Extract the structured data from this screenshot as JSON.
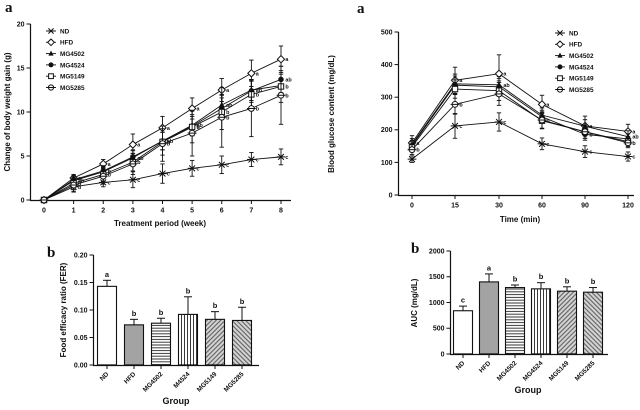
{
  "panels": {
    "weight_panel_label": "a",
    "fer_panel_label": "b",
    "glucose_panel_label": "a",
    "auc_panel_label": "b"
  },
  "colors": {
    "ink": "#111111",
    "solid_bar": "#a3a3a3",
    "hatch_bg": "#d4d4d4"
  },
  "chart_data": [
    {
      "id": "weight",
      "type": "line",
      "title": "",
      "xlabel": "Treatment period (week)",
      "ylabel": "Change of body weight gain (g)",
      "x": [
        0,
        1,
        2,
        3,
        4,
        5,
        6,
        7,
        8
      ],
      "xtick_labels": [
        "0",
        "1",
        "2",
        "3",
        "4",
        "5",
        "6",
        "7",
        "8"
      ],
      "xlim": [
        0,
        8
      ],
      "ylim": [
        0,
        20
      ],
      "yticks": [
        0,
        5,
        10,
        15,
        20
      ],
      "ytick_labels": [
        "0",
        "5",
        "10",
        "15",
        "20"
      ],
      "legend_position": "top-left-inside",
      "series": [
        {
          "name": "ND",
          "marker": "x-dash",
          "values": [
            0,
            1.5,
            2.0,
            2.3,
            3.0,
            3.6,
            4.0,
            4.6,
            4.9
          ],
          "errors": [
            0,
            0.6,
            0.5,
            0.9,
            1.1,
            0.9,
            1.0,
            0.8,
            0.9
          ],
          "letters": [
            "",
            "b",
            "c",
            "c",
            "c",
            "c",
            "c",
            "c",
            "c"
          ]
        },
        {
          "name": "HFD",
          "marker": "diamond-open",
          "values": [
            0,
            2.5,
            4.1,
            6.3,
            8.2,
            10.4,
            12.5,
            14.4,
            16.0
          ],
          "errors": [
            0,
            0.4,
            0.5,
            1.2,
            1.3,
            1.2,
            1.3,
            1.5,
            1.5
          ],
          "letters": [
            "",
            "a",
            "a",
            "a",
            "a",
            "a",
            "a",
            "a",
            "a"
          ]
        },
        {
          "name": "MG4502",
          "marker": "triangle-filled",
          "values": [
            0,
            2.2,
            3.2,
            4.8,
            6.7,
            8.5,
            10.8,
            12.5,
            13.0
          ],
          "errors": [
            0,
            0.5,
            0.6,
            0.8,
            1.0,
            1.2,
            1.1,
            1.2,
            1.3
          ],
          "letters": [
            "",
            "ab",
            "",
            "ab",
            "ab",
            "ab",
            "ab",
            "ab",
            ""
          ]
        },
        {
          "name": "MG4524",
          "marker": "circle-filled",
          "values": [
            0,
            2.3,
            3.3,
            4.9,
            6.7,
            8.4,
            10.4,
            12.4,
            13.7
          ],
          "errors": [
            0,
            0.5,
            0.6,
            0.8,
            1.0,
            1.1,
            1.2,
            1.3,
            1.5
          ],
          "letters": [
            "",
            "",
            "b",
            "",
            "",
            "b",
            "",
            "",
            "ab"
          ]
        },
        {
          "name": "MG5149",
          "marker": "square-open",
          "values": [
            0,
            1.9,
            2.9,
            4.3,
            6.6,
            8.3,
            10.0,
            12.0,
            12.9
          ],
          "errors": [
            0,
            0.7,
            0.8,
            1.0,
            1.5,
            1.8,
            2.0,
            1.5,
            1.8
          ],
          "letters": [
            "",
            "b",
            "b",
            "b",
            "b",
            "b",
            "b",
            "b",
            "b"
          ]
        },
        {
          "name": "MG5285",
          "marker": "circle-crossed",
          "values": [
            0,
            1.7,
            2.7,
            4.1,
            6.4,
            7.6,
            9.4,
            10.4,
            11.9
          ],
          "errors": [
            0,
            0.7,
            0.9,
            1.2,
            2.0,
            2.6,
            3.4,
            3.2,
            3.3
          ],
          "letters": [
            "",
            "",
            "",
            "",
            "b",
            "",
            "b",
            "b",
            "b"
          ]
        }
      ]
    },
    {
      "id": "glucose",
      "type": "line",
      "title": "",
      "xlabel": "Time (min)",
      "ylabel": "Blood glucose content (mg/dL)",
      "x": [
        0,
        15,
        30,
        60,
        90,
        120
      ],
      "x_equal_spacing": true,
      "xtick_labels": [
        "0",
        "15",
        "30",
        "60",
        "90",
        "120"
      ],
      "ylim": [
        0,
        500
      ],
      "yticks": [
        0,
        100,
        200,
        300,
        400,
        500
      ],
      "ytick_labels": [
        "0",
        "100",
        "200",
        "300",
        "400",
        "500"
      ],
      "legend_position": "top-right-inside",
      "series": [
        {
          "name": "ND",
          "marker": "x-dash",
          "values": [
            110,
            212,
            224,
            157,
            133,
            118
          ],
          "errors": [
            10,
            38,
            28,
            18,
            18,
            14
          ],
          "letters": [
            "",
            "c",
            "c",
            "c",
            "c",
            "c"
          ]
        },
        {
          "name": "HFD",
          "marker": "diamond-open",
          "values": [
            160,
            352,
            372,
            278,
            212,
            195
          ],
          "errors": [
            22,
            40,
            58,
            28,
            30,
            22
          ],
          "letters": [
            "a",
            "a",
            "a",
            "a",
            "a",
            "a"
          ]
        },
        {
          "name": "MG4502",
          "marker": "triangle-filled",
          "values": [
            155,
            341,
            338,
            245,
            211,
            179
          ],
          "errors": [
            18,
            30,
            25,
            22,
            20,
            18
          ],
          "letters": [
            "",
            "",
            "ab",
            "",
            "",
            "ab"
          ]
        },
        {
          "name": "MG4524",
          "marker": "circle-filled",
          "values": [
            152,
            337,
            332,
            240,
            186,
            172
          ],
          "errors": [
            15,
            28,
            25,
            20,
            18,
            15
          ],
          "letters": [
            "",
            "",
            "",
            "",
            "b",
            ""
          ]
        },
        {
          "name": "MG5149",
          "marker": "square-open",
          "values": [
            148,
            325,
            320,
            228,
            194,
            164
          ],
          "errors": [
            15,
            28,
            30,
            25,
            20,
            15
          ],
          "letters": [
            "",
            "",
            "",
            "b",
            "",
            ""
          ]
        },
        {
          "name": "MG5285",
          "marker": "circle-crossed",
          "values": [
            139,
            278,
            310,
            230,
            194,
            160
          ],
          "errors": [
            15,
            30,
            35,
            25,
            20,
            15
          ],
          "letters": [
            "b",
            "b",
            "",
            "",
            "",
            "b"
          ]
        }
      ]
    },
    {
      "id": "fer",
      "type": "bar",
      "title": "",
      "xlabel": "Group",
      "ylabel": "Food efficacy ratio (FER)",
      "categories": [
        "ND",
        "HFD",
        "MG4502",
        "M4524",
        "MG5149",
        "MG5285"
      ],
      "values": [
        0.143,
        0.073,
        0.076,
        0.092,
        0.083,
        0.081
      ],
      "errors": [
        0.011,
        0.01,
        0.009,
        0.032,
        0.014,
        0.024
      ],
      "letters": [
        "a",
        "b",
        "b",
        "b",
        "b",
        "b"
      ],
      "patterns": [
        "white",
        "solid",
        "hlines",
        "vlines",
        "diag-down",
        "diag-up"
      ],
      "ylim": [
        0,
        0.2
      ],
      "yticks": [
        0,
        0.05,
        0.1,
        0.15,
        0.2
      ],
      "ytick_labels": [
        "0.00",
        "0.05",
        "0.10",
        "0.15",
        "0.20"
      ]
    },
    {
      "id": "auc",
      "type": "bar",
      "title": "",
      "xlabel": "Group",
      "ylabel": "AUC (mg/dL)",
      "categories": [
        "ND",
        "HFD",
        "MG4502",
        "MG4524",
        "MG5149",
        "MG5285"
      ],
      "values": [
        840,
        1400,
        1290,
        1265,
        1220,
        1200
      ],
      "errors": [
        90,
        155,
        50,
        120,
        85,
        90
      ],
      "letters": [
        "c",
        "a",
        "b",
        "b",
        "b",
        "b"
      ],
      "patterns": [
        "white",
        "solid",
        "hlines",
        "vlines",
        "diag-down",
        "diag-up"
      ],
      "ylim": [
        0,
        2000
      ],
      "yticks": [
        0,
        500,
        1000,
        1500,
        2000
      ],
      "ytick_labels": [
        "0",
        "500",
        "1000",
        "1500",
        "2000"
      ]
    }
  ]
}
